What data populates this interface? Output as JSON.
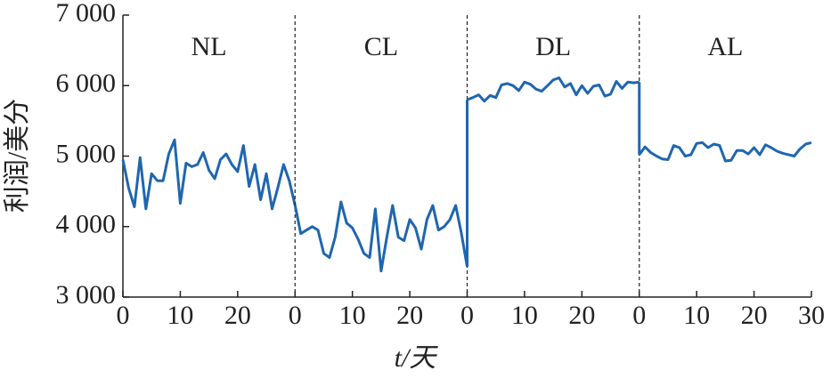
{
  "chart_data": {
    "type": "line",
    "ylabel": "利润/美分",
    "xlabel": "t/天",
    "color": "#1f66b0",
    "ylim": [
      3000,
      7000
    ],
    "yticks": [
      {
        "value": 3000,
        "label": "3 000"
      },
      {
        "value": 4000,
        "label": "4 000"
      },
      {
        "value": 5000,
        "label": "5 000"
      },
      {
        "value": 6000,
        "label": "6 000"
      },
      {
        "value": 7000,
        "label": "7 000"
      }
    ],
    "xlim": [
      0,
      30
    ],
    "panels": [
      {
        "label": "NL",
        "xticks": [
          0,
          10,
          20
        ],
        "x": [
          0,
          1,
          2,
          3,
          4,
          5,
          6,
          7,
          8,
          9,
          10,
          11,
          12,
          13,
          14,
          15,
          16,
          17,
          18,
          19,
          20,
          21,
          22,
          23,
          24,
          25,
          26,
          27,
          28,
          29,
          30
        ],
        "values": [
          4950,
          4550,
          4280,
          4980,
          4250,
          4750,
          4650,
          4650,
          5030,
          5230,
          4330,
          4900,
          4850,
          4880,
          5050,
          4800,
          4680,
          4950,
          5030,
          4880,
          4780,
          5150,
          4570,
          4880,
          4380,
          4750,
          4250,
          4550,
          4880,
          4650,
          4300
        ]
      },
      {
        "label": "CL",
        "xticks": [
          0,
          10,
          20
        ],
        "x": [
          0,
          1,
          2,
          3,
          4,
          5,
          6,
          7,
          8,
          9,
          10,
          11,
          12,
          13,
          14,
          15,
          16,
          17,
          18,
          19,
          20,
          21,
          22,
          23,
          24,
          25,
          26,
          27,
          28,
          29,
          30
        ],
        "values": [
          4300,
          3900,
          3950,
          4000,
          3950,
          3620,
          3560,
          3850,
          4350,
          4050,
          3980,
          3820,
          3620,
          3560,
          4250,
          3370,
          3850,
          4300,
          3850,
          3800,
          4100,
          3980,
          3680,
          4100,
          4300,
          3950,
          4000,
          4100,
          4300,
          3900,
          3430
        ]
      },
      {
        "label": "DL",
        "xticks": [
          0,
          10,
          20
        ],
        "x": [
          0,
          1,
          2,
          3,
          4,
          5,
          6,
          7,
          8,
          9,
          10,
          11,
          12,
          13,
          14,
          15,
          16,
          17,
          18,
          19,
          20,
          21,
          22,
          23,
          24,
          25,
          26,
          27,
          28,
          29,
          30
        ],
        "values": [
          5800,
          5830,
          5870,
          5780,
          5860,
          5830,
          6010,
          6030,
          6000,
          5930,
          6050,
          6020,
          5950,
          5920,
          6000,
          6080,
          6110,
          5980,
          6030,
          5870,
          6000,
          5890,
          5990,
          6010,
          5850,
          5880,
          6060,
          5960,
          6050,
          6040,
          6050
        ]
      },
      {
        "label": "AL",
        "xticks": [
          0,
          10,
          20,
          30
        ],
        "x": [
          0,
          1,
          2,
          3,
          4,
          5,
          6,
          7,
          8,
          9,
          10,
          11,
          12,
          13,
          14,
          15,
          16,
          17,
          18,
          19,
          20,
          21,
          22,
          23,
          24,
          25,
          26,
          27,
          28,
          29,
          30
        ],
        "values": [
          5020,
          5130,
          5050,
          5000,
          4960,
          4950,
          5150,
          5120,
          5000,
          5020,
          5180,
          5190,
          5120,
          5170,
          5150,
          4930,
          4940,
          5080,
          5080,
          5030,
          5120,
          5020,
          5160,
          5120,
          5070,
          5040,
          5020,
          5000,
          5100,
          5170,
          5190
        ]
      }
    ]
  }
}
